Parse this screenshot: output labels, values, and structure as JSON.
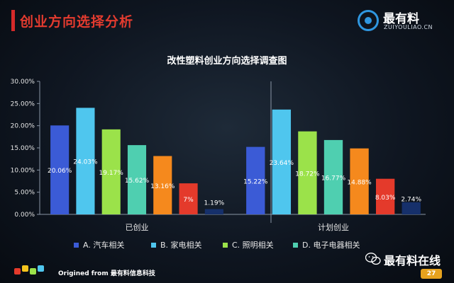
{
  "page": {
    "title": "创业方向选择分析",
    "brand_name": "最有料",
    "brand_url": "ZUIYOULIAO.CN",
    "footer_text": "Origined from 最有料信息科技",
    "wechat_name": "最有料在线",
    "page_number": "27"
  },
  "colors": {
    "accent_red": "#e33b2f",
    "brand_blue": "#2f97e0",
    "series": [
      "#3b5bd6",
      "#4fc6ee",
      "#9be24a",
      "#4fcfb0",
      "#f5891d",
      "#e43a2b",
      "#16306b"
    ]
  },
  "chart_data": {
    "type": "bar",
    "title": "改性塑料创业方向选择调查图",
    "categories": [
      "已创业",
      "计划创业"
    ],
    "ylim": [
      0,
      30
    ],
    "yticks": [
      "0.00%",
      "5.00%",
      "10.00%",
      "15.00%",
      "20.00%",
      "25.00%",
      "30.00%"
    ],
    "ytick_values": [
      0,
      5,
      10,
      15,
      20,
      25,
      30
    ],
    "grid": false,
    "legend_position": "bottom",
    "legend": [
      "A. 汽车相关",
      "B. 家电相关",
      "C. 照明相关",
      "D. 电子电器相关"
    ],
    "series": [
      {
        "name": "A. 汽车相关",
        "values": [
          20.06,
          15.22
        ],
        "labels": [
          "20.06%",
          "15.22%"
        ]
      },
      {
        "name": "B. 家电相关",
        "values": [
          24.03,
          23.64
        ],
        "labels": [
          "24.03%",
          "23.64%"
        ]
      },
      {
        "name": "C. 照明相关",
        "values": [
          19.17,
          18.72
        ],
        "labels": [
          "19.17%",
          "18.72%"
        ]
      },
      {
        "name": "D. 电子电器相关",
        "values": [
          15.62,
          16.77
        ],
        "labels": [
          "15.62%",
          "16.77%"
        ]
      },
      {
        "values": [
          13.16,
          14.88
        ],
        "labels": [
          "13.16%",
          "14.88%"
        ]
      },
      {
        "values": [
          7,
          8.03
        ],
        "labels": [
          "7%",
          "8.03%"
        ]
      },
      {
        "values": [
          1.19,
          2.74
        ],
        "labels": [
          "1.19%",
          "2.74%"
        ]
      }
    ]
  }
}
